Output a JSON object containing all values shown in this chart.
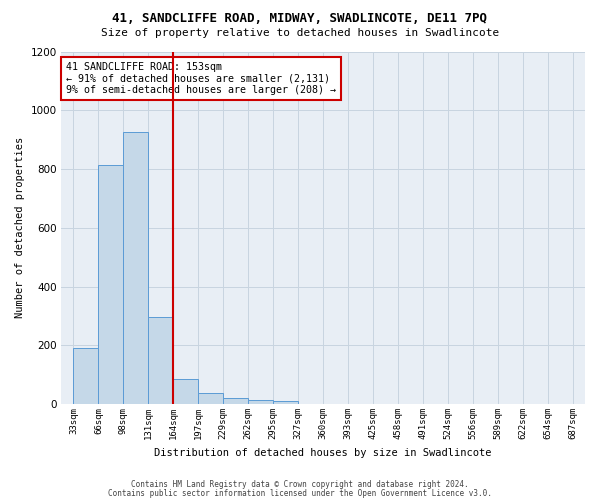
{
  "title": "41, SANDCLIFFE ROAD, MIDWAY, SWADLINCOTE, DE11 7PQ",
  "subtitle": "Size of property relative to detached houses in Swadlincote",
  "xlabel": "Distribution of detached houses by size in Swadlincote",
  "ylabel": "Number of detached properties",
  "bin_labels": [
    "33sqm",
    "66sqm",
    "98sqm",
    "131sqm",
    "164sqm",
    "197sqm",
    "229sqm",
    "262sqm",
    "295sqm",
    "327sqm",
    "360sqm",
    "393sqm",
    "425sqm",
    "458sqm",
    "491sqm",
    "524sqm",
    "556sqm",
    "589sqm",
    "622sqm",
    "654sqm",
    "687sqm"
  ],
  "bar_values": [
    190,
    815,
    925,
    295,
    85,
    38,
    22,
    15,
    12,
    0,
    0,
    0,
    0,
    0,
    0,
    0,
    0,
    0,
    0,
    0,
    0
  ],
  "bar_color": "#c5d8e8",
  "bar_edge_color": "#5b9bd5",
  "property_size_bin": 4,
  "property_size_label": "153sqm",
  "red_line_color": "#cc0000",
  "annotation_line1": "41 SANDCLIFFE ROAD: 153sqm",
  "annotation_line2": "← 91% of detached houses are smaller (2,131)",
  "annotation_line3": "9% of semi-detached houses are larger (208) →",
  "annotation_box_color": "#ffffff",
  "annotation_box_edge_color": "#cc0000",
  "ylim": [
    0,
    1200
  ],
  "yticks": [
    0,
    200,
    400,
    600,
    800,
    1000,
    1200
  ],
  "grid_color": "#c8d4e0",
  "bg_color": "#e8eef5",
  "footer_line1": "Contains HM Land Registry data © Crown copyright and database right 2024.",
  "footer_line2": "Contains public sector information licensed under the Open Government Licence v3.0."
}
